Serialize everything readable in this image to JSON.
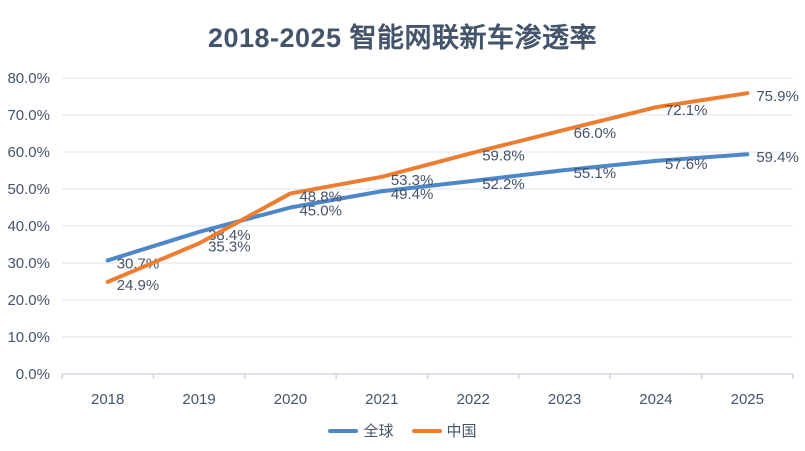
{
  "title": "2018-2025 智能网联新车渗透率",
  "colors": {
    "title_text": "#44546A",
    "axis_text": "#44546A",
    "data_label_text": "#44546A",
    "gridline": "#dde4ee",
    "axis_line": "#c6cfdd",
    "background": "#ffffff",
    "series_global": "#4e87c7",
    "series_china": "#ED7D31"
  },
  "chart_data": {
    "type": "line",
    "title": "2018-2025 智能网联新车渗透率",
    "categories": [
      "2018",
      "2019",
      "2020",
      "2021",
      "2022",
      "2023",
      "2024",
      "2025"
    ],
    "series": [
      {
        "name": "全球",
        "color": "#4e87c7",
        "values": [
          30.7,
          38.4,
          45.0,
          49.4,
          52.2,
          55.1,
          57.6,
          59.4
        ]
      },
      {
        "name": "中国",
        "color": "#ED7D31",
        "values": [
          24.9,
          35.3,
          48.8,
          53.3,
          59.8,
          66.0,
          72.1,
          75.9
        ]
      }
    ],
    "data_labels_visible": true,
    "data_label_format": "0.0%",
    "xlabel": "",
    "ylabel": "",
    "y_axis": {
      "min": 0,
      "max": 80,
      "step": 10,
      "tick_labels": [
        "0.0%",
        "10.0%",
        "20.0%",
        "30.0%",
        "40.0%",
        "50.0%",
        "60.0%",
        "70.0%",
        "80.0%"
      ]
    },
    "grid": "horizontal",
    "legend_position": "bottom",
    "markers": "none"
  }
}
